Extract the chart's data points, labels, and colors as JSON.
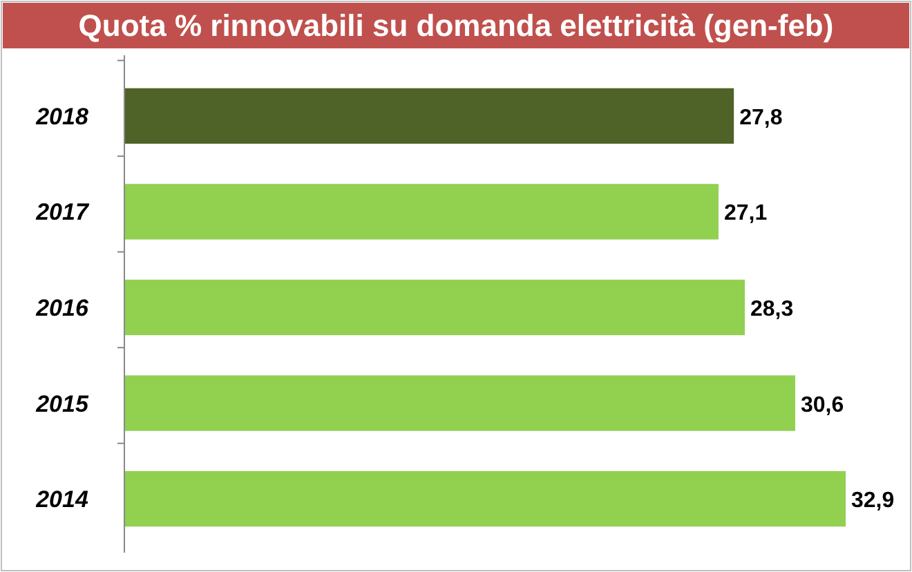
{
  "chart_data": {
    "type": "bar",
    "orientation": "horizontal",
    "title": "Quota % rinnovabili su domanda elettricità (gen-feb)",
    "categories": [
      "2018",
      "2017",
      "2016",
      "2015",
      "2014"
    ],
    "values": [
      27.8,
      27.1,
      28.3,
      30.6,
      32.9
    ],
    "colors": [
      "#4f6228",
      "#92d050",
      "#92d050",
      "#92d050",
      "#92d050"
    ],
    "value_labels": [
      "27,8",
      "27,1",
      "28,3",
      "30,6",
      "32,9"
    ]
  }
}
